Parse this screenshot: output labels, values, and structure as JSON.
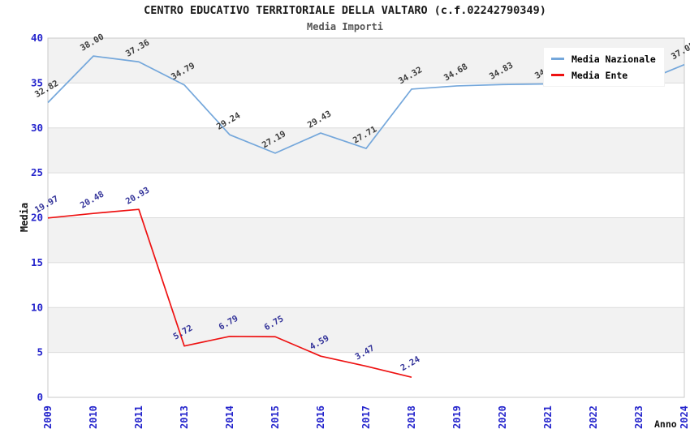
{
  "chart_data": {
    "type": "line",
    "title": "CENTRO EDUCATIVO TERRITORIALE DELLA VALTARO (c.f.02242790349)",
    "subtitle": "Media Importi",
    "xlabel": "Anno",
    "ylabel": "Media",
    "ylim": [
      0,
      40
    ],
    "y_ticks": [
      0,
      5,
      10,
      15,
      20,
      25,
      30,
      35,
      40
    ],
    "grid": "horizontal-bands-every-5",
    "legend_position": "top-right",
    "categories": [
      "2009",
      "2010",
      "2011",
      "2013",
      "2014",
      "2015",
      "2016",
      "2017",
      "2018",
      "2019",
      "2020",
      "2021",
      "2022",
      "2023",
      "2024"
    ],
    "series": [
      {
        "name": "Media Nazionale",
        "color": "#74A7DB",
        "label_color": "#3C3C3C",
        "values": [
          32.82,
          38.0,
          37.36,
          34.79,
          29.24,
          27.19,
          29.43,
          27.71,
          34.32,
          34.68,
          34.83,
          34.9,
          34.93,
          34.96,
          37.05
        ]
      },
      {
        "name": "Media Ente",
        "color": "#EE1111",
        "label_color": "#333399",
        "values": [
          19.97,
          20.48,
          20.93,
          5.72,
          6.79,
          6.75,
          4.59,
          3.47,
          2.24
        ]
      }
    ]
  },
  "style": {
    "tick_label_color": "#2424CC",
    "band_fill": "#F2F2F2",
    "grid_line": "#DBDBDB",
    "plot_border": "#C9C9C9"
  }
}
